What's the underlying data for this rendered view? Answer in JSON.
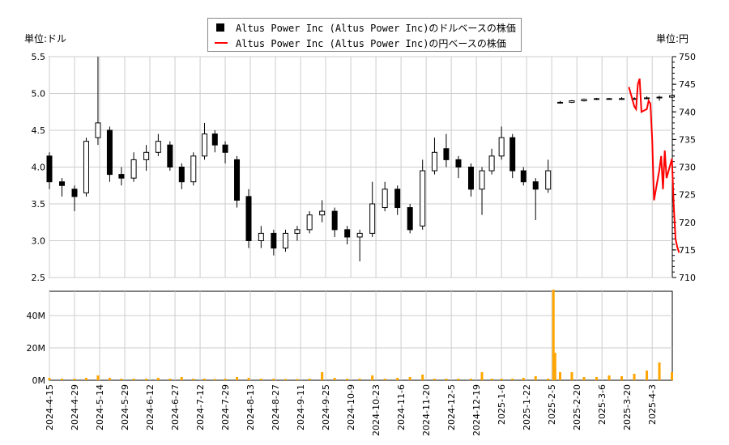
{
  "units": {
    "left": "単位:ドル",
    "right": "単位:円"
  },
  "legend": [
    {
      "label": "Altus Power Inc (Altus Power Inc)のドルベースの株価",
      "color": "#000000",
      "marker": "square"
    },
    {
      "label": "Altus Power Inc (Altus Power Inc)の円ベースの株価",
      "color": "#ff0000",
      "marker": "line"
    }
  ],
  "chart_data": [
    {
      "type": "candlestick",
      "series_name": "Altus Power Inc (Altus Power Inc)のドルベースの株価",
      "ylim": [
        2.5,
        5.5
      ],
      "yticks": [
        "2.5",
        "3.0",
        "3.5",
        "4.0",
        "4.5",
        "5.0",
        "5.5"
      ],
      "xticks": [
        "2024-4-15",
        "2024-4-29",
        "2024-5-14",
        "2024-5-29",
        "2024-6-12",
        "2024-6-27",
        "2024-7-12",
        "2024-7-29",
        "2024-8-13",
        "2024-8-27",
        "2024-9-11",
        "2024-9-25",
        "2024-10-9",
        "2024-10-23",
        "2024-11-6",
        "2024-11-20",
        "2024-12-5",
        "2024-12-19",
        "2025-1-6",
        "2025-1-22",
        "2025-2-5",
        "2025-2-20",
        "2025-3-6",
        "2025-3-20",
        "2025-4-3"
      ],
      "grid": true,
      "ohlc": [
        [
          "2024-04-15",
          4.15,
          4.2,
          3.7,
          3.8
        ],
        [
          "2024-04-22",
          3.8,
          3.85,
          3.6,
          3.75
        ],
        [
          "2024-04-29",
          3.7,
          3.75,
          3.4,
          3.6
        ],
        [
          "2024-05-06",
          3.65,
          4.4,
          3.6,
          4.35
        ],
        [
          "2024-05-13",
          4.4,
          5.5,
          4.3,
          4.6
        ],
        [
          "2024-05-20",
          4.5,
          4.55,
          3.8,
          3.9
        ],
        [
          "2024-05-27",
          3.9,
          4.0,
          3.75,
          3.85
        ],
        [
          "2024-06-03",
          3.85,
          4.2,
          3.8,
          4.1
        ],
        [
          "2024-06-10",
          4.1,
          4.3,
          3.95,
          4.2
        ],
        [
          "2024-06-17",
          4.2,
          4.45,
          4.15,
          4.35
        ],
        [
          "2024-06-24",
          4.3,
          4.35,
          3.95,
          4.0
        ],
        [
          "2024-07-01",
          4.0,
          4.05,
          3.7,
          3.8
        ],
        [
          "2024-07-08",
          3.8,
          4.2,
          3.75,
          4.15
        ],
        [
          "2024-07-15",
          4.15,
          4.6,
          4.1,
          4.45
        ],
        [
          "2024-07-22",
          4.45,
          4.5,
          4.2,
          4.3
        ],
        [
          "2024-07-29",
          4.3,
          4.35,
          4.05,
          4.2
        ],
        [
          "2024-08-05",
          4.1,
          4.15,
          3.45,
          3.55
        ],
        [
          "2024-08-12",
          3.6,
          3.7,
          2.9,
          3.0
        ],
        [
          "2024-08-19",
          3.0,
          3.2,
          2.9,
          3.1
        ],
        [
          "2024-08-26",
          3.1,
          3.15,
          2.8,
          2.9
        ],
        [
          "2024-09-02",
          2.9,
          3.15,
          2.85,
          3.1
        ],
        [
          "2024-09-09",
          3.1,
          3.2,
          3.0,
          3.15
        ],
        [
          "2024-09-16",
          3.15,
          3.4,
          3.1,
          3.35
        ],
        [
          "2024-09-23",
          3.35,
          3.55,
          3.25,
          3.4
        ],
        [
          "2024-09-30",
          3.4,
          3.45,
          3.05,
          3.15
        ],
        [
          "2024-10-07",
          3.15,
          3.2,
          2.95,
          3.05
        ],
        [
          "2024-10-14",
          3.05,
          3.15,
          2.72,
          3.1
        ],
        [
          "2024-10-21",
          3.1,
          3.8,
          3.05,
          3.5
        ],
        [
          "2024-10-28",
          3.45,
          3.8,
          3.4,
          3.7
        ],
        [
          "2024-11-04",
          3.7,
          3.75,
          3.35,
          3.45
        ],
        [
          "2024-11-11",
          3.45,
          3.5,
          3.1,
          3.15
        ],
        [
          "2024-11-18",
          3.2,
          4.1,
          3.15,
          3.95
        ],
        [
          "2024-11-25",
          3.95,
          4.4,
          3.9,
          4.2
        ],
        [
          "2024-12-02",
          4.25,
          4.45,
          4.0,
          4.1
        ],
        [
          "2024-12-09",
          4.1,
          4.15,
          3.85,
          4.0
        ],
        [
          "2024-12-16",
          4.0,
          4.05,
          3.6,
          3.7
        ],
        [
          "2024-12-23",
          3.7,
          4.0,
          3.35,
          3.95
        ],
        [
          "2024-12-30",
          3.95,
          4.25,
          3.9,
          4.15
        ],
        [
          "2025-01-06",
          4.15,
          4.55,
          4.1,
          4.4
        ],
        [
          "2025-01-13",
          4.4,
          4.45,
          3.85,
          3.95
        ],
        [
          "2025-01-20",
          3.95,
          4.0,
          3.75,
          3.8
        ],
        [
          "2025-01-27",
          3.8,
          3.85,
          3.28,
          3.7
        ],
        [
          "2025-02-03",
          3.7,
          4.1,
          3.65,
          3.95
        ],
        [
          "2025-02-10",
          4.87,
          4.9,
          4.86,
          4.88
        ],
        [
          "2025-02-17",
          4.88,
          4.91,
          4.87,
          4.9
        ],
        [
          "2025-02-24",
          4.9,
          4.93,
          4.89,
          4.92
        ],
        [
          "2025-03-03",
          4.92,
          4.94,
          4.91,
          4.93
        ],
        [
          "2025-03-10",
          4.93,
          4.94,
          4.92,
          4.93
        ],
        [
          "2025-03-17",
          4.93,
          4.95,
          4.92,
          4.93
        ],
        [
          "2025-03-24",
          4.93,
          4.95,
          4.92,
          4.93
        ],
        [
          "2025-03-31",
          4.93,
          4.96,
          4.92,
          4.94
        ],
        [
          "2025-04-07",
          4.94,
          4.97,
          4.9,
          4.95
        ],
        [
          "2025-04-14",
          4.95,
          4.98,
          4.94,
          4.97
        ]
      ]
    },
    {
      "type": "line",
      "series_name": "Altus Power Inc (Altus Power Inc)の円ベースの株価",
      "axis": "right",
      "ylim": [
        710,
        750
      ],
      "yticks": [
        "710",
        "715",
        "720",
        "725",
        "730",
        "735",
        "740",
        "745",
        "750"
      ],
      "color": "#ff0000",
      "points": [
        [
          "2025-03-21",
          744.5
        ],
        [
          "2025-03-24",
          741
        ],
        [
          "2025-03-25",
          740.5
        ],
        [
          "2025-03-26",
          745
        ],
        [
          "2025-03-27",
          746
        ],
        [
          "2025-03-28",
          740
        ],
        [
          "2025-03-31",
          740.5
        ],
        [
          "2025-04-01",
          742
        ],
        [
          "2025-04-02",
          741.5
        ],
        [
          "2025-04-03",
          735
        ],
        [
          "2025-04-04",
          724
        ],
        [
          "2025-04-07",
          729.5
        ],
        [
          "2025-04-08",
          732
        ],
        [
          "2025-04-09",
          726
        ],
        [
          "2025-04-10",
          733
        ],
        [
          "2025-04-11",
          728
        ],
        [
          "2025-04-14",
          731.5
        ],
        [
          "2025-04-15",
          723
        ],
        [
          "2025-04-16",
          717
        ],
        [
          "2025-04-17",
          715.5
        ],
        [
          "2025-04-18",
          714.5
        ]
      ]
    },
    {
      "type": "bar",
      "series_name": "volume",
      "ylim": [
        0,
        55
      ],
      "yticks": [
        "0M",
        "20M",
        "40M"
      ],
      "color": "#ffa500",
      "values": [
        [
          "2024-04-15",
          1.5
        ],
        [
          "2024-04-22",
          1
        ],
        [
          "2024-04-29",
          1
        ],
        [
          "2024-05-06",
          1.5
        ],
        [
          "2024-05-13",
          3
        ],
        [
          "2024-05-20",
          1.5
        ],
        [
          "2024-05-27",
          1
        ],
        [
          "2024-06-03",
          1
        ],
        [
          "2024-06-10",
          1
        ],
        [
          "2024-06-17",
          1.5
        ],
        [
          "2024-06-24",
          1
        ],
        [
          "2024-07-01",
          2
        ],
        [
          "2024-07-08",
          1
        ],
        [
          "2024-07-15",
          1
        ],
        [
          "2024-07-22",
          0.8
        ],
        [
          "2024-07-29",
          1
        ],
        [
          "2024-08-05",
          2
        ],
        [
          "2024-08-12",
          1.5
        ],
        [
          "2024-08-19",
          1
        ],
        [
          "2024-08-26",
          1
        ],
        [
          "2024-09-02",
          0.8
        ],
        [
          "2024-09-09",
          0.8
        ],
        [
          "2024-09-16",
          1
        ],
        [
          "2024-09-23",
          5
        ],
        [
          "2024-09-30",
          1.5
        ],
        [
          "2024-10-07",
          1
        ],
        [
          "2024-10-14",
          1
        ],
        [
          "2024-10-21",
          3
        ],
        [
          "2024-10-28",
          1
        ],
        [
          "2024-11-04",
          1.5
        ],
        [
          "2024-11-11",
          2
        ],
        [
          "2024-11-18",
          3.5
        ],
        [
          "2024-11-25",
          1
        ],
        [
          "2024-12-02",
          1
        ],
        [
          "2024-12-09",
          1
        ],
        [
          "2024-12-16",
          1
        ],
        [
          "2024-12-23",
          5
        ],
        [
          "2024-12-30",
          1
        ],
        [
          "2025-01-06",
          1
        ],
        [
          "2025-01-13",
          1
        ],
        [
          "2025-01-20",
          1.5
        ],
        [
          "2025-01-27",
          2.5
        ],
        [
          "2025-02-03",
          1
        ],
        [
          "2025-02-06",
          56
        ],
        [
          "2025-02-07",
          17
        ],
        [
          "2025-02-10",
          5
        ],
        [
          "2025-02-17",
          5
        ],
        [
          "2025-02-24",
          2
        ],
        [
          "2025-03-03",
          2
        ],
        [
          "2025-03-10",
          3
        ],
        [
          "2025-03-17",
          2.5
        ],
        [
          "2025-03-24",
          4
        ],
        [
          "2025-03-31",
          6
        ],
        [
          "2025-04-07",
          11
        ],
        [
          "2025-04-14",
          5
        ]
      ]
    }
  ]
}
